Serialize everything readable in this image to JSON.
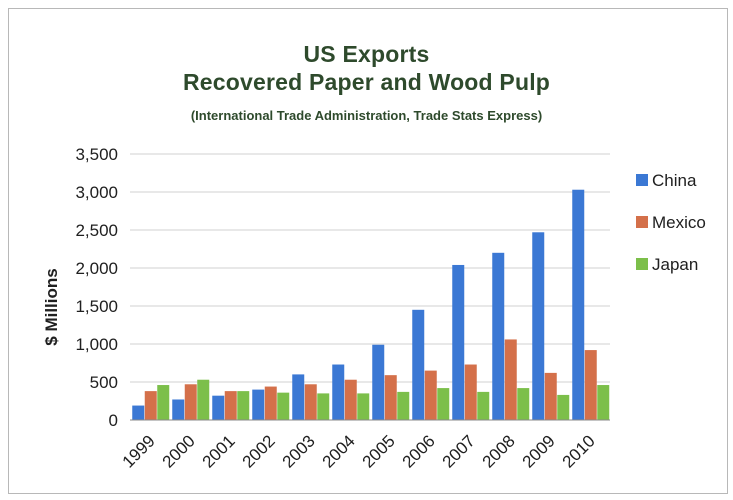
{
  "chart_data": {
    "type": "bar",
    "title": "US Exports",
    "title_line2": "Recovered Paper and Wood Pulp",
    "subtitle": "(International Trade Administration, Trade Stats Express)",
    "ylabel": "$ Millions",
    "xlabel": "",
    "ylim": [
      0,
      3500
    ],
    "yticks": [
      0,
      500,
      1000,
      1500,
      2000,
      2500,
      3000,
      3500
    ],
    "ytick_labels": [
      "0",
      "500",
      "1,000",
      "1,500",
      "2,000",
      "2,500",
      "3,000",
      "3,500"
    ],
    "grid": true,
    "legend_position": "right",
    "categories": [
      "1999",
      "2000",
      "2001",
      "2002",
      "2003",
      "2004",
      "2005",
      "2006",
      "2007",
      "2008",
      "2009",
      "2010"
    ],
    "series": [
      {
        "name": "China",
        "color": "#3b78d4",
        "values": [
          190,
          270,
          320,
          400,
          600,
          730,
          990,
          1450,
          2040,
          2200,
          2470,
          3030
        ]
      },
      {
        "name": "Mexico",
        "color": "#d4704a",
        "values": [
          380,
          470,
          380,
          440,
          470,
          530,
          590,
          650,
          730,
          1060,
          620,
          920
        ]
      },
      {
        "name": "Japan",
        "color": "#7cbf4a",
        "values": [
          460,
          530,
          380,
          360,
          350,
          350,
          370,
          420,
          370,
          420,
          330,
          460
        ]
      }
    ]
  }
}
